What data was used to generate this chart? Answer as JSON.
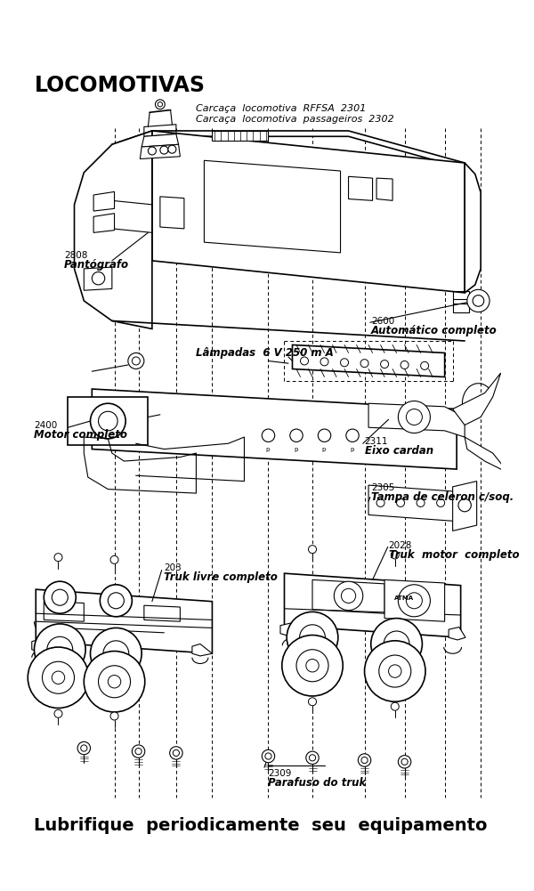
{
  "title": "LOCOMOTIVAS",
  "footer": "Lubrifique  periodicamente  seu  equipamento",
  "label_carcaca1": "Carcaça  locomotiva  RFFSA  2301",
  "label_carcaca2": "Carcaça  locomotiva  passageiros  2302",
  "label_pantografo_num": "2808",
  "label_pantografo": "Pantógrafo",
  "label_lampadas": "Lâmpadas  6 V 250 m A",
  "label_automatico_num": "2600",
  "label_automatico": "Automático completo",
  "label_motor_num": "2400",
  "label_motor": "Motor completo",
  "label_eixo_num": "2311",
  "label_eixo": "Eixo cardan",
  "label_tampa_num": "2305",
  "label_tampa": "Tampa de celeron c/soq.",
  "label_truk_livre_num": "203",
  "label_truk_livre": "Truk livre completo",
  "label_truk_motor_num": "2028",
  "label_truk_motor": "Truk  motor  completo",
  "label_parafuso_num": "2309",
  "label_parafuso": "Parafuso do truk",
  "bg_color": "#ffffff",
  "fg_color": "#000000",
  "figsize": [
    6.0,
    10.01
  ],
  "dpi": 100
}
